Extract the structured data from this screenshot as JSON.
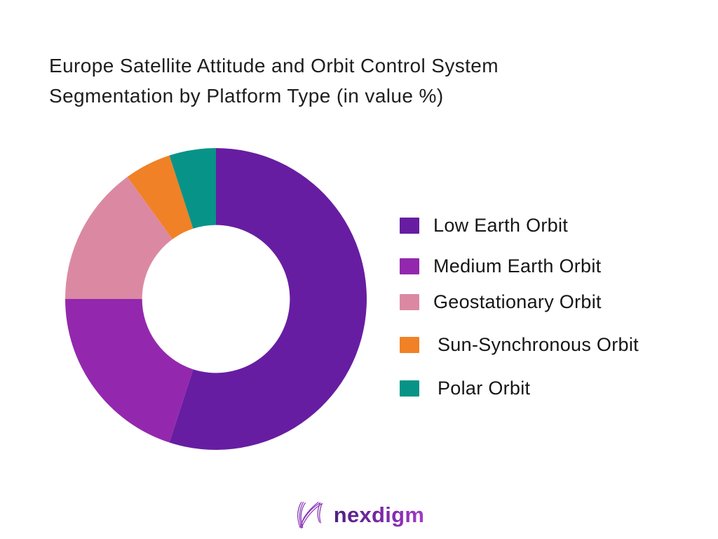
{
  "header": {
    "title_line1": "Europe Satellite Attitude and Orbit Control System",
    "title_line2": "Segmentation by Platform Type (in value %)"
  },
  "chart_data": {
    "type": "pie",
    "subtype": "donut",
    "title": "Europe Satellite Attitude and Orbit Control System Segmentation by Platform Type (in value %)",
    "units": "value %",
    "labels": [
      "Low Earth Orbit",
      "Medium Earth Orbit",
      "Geostationary Orbit",
      "Sun-Synchronous Orbit",
      "Polar Orbit"
    ],
    "values": [
      55,
      20,
      15,
      5,
      5
    ],
    "colors": [
      "#671da1",
      "#9328ae",
      "#db89a2",
      "#f08126",
      "#089388"
    ],
    "start_angle_deg": 0,
    "direction": "clockwise",
    "donut_hole_ratio": 0.49,
    "legend_position": "right",
    "data_labels_shown": false
  },
  "footer": {
    "brand": "nexdigm",
    "logo_icon": "nexdigm-wave-n-icon",
    "brand_gradient_start": "#4c2280",
    "brand_gradient_end": "#a43bc8"
  }
}
